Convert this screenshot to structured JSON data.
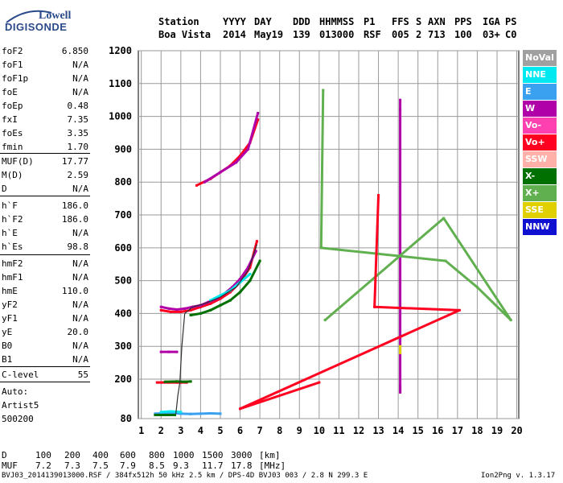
{
  "logo": {
    "company": "Lowell",
    "product": "DIGISONDE"
  },
  "header": {
    "labels": [
      "Station",
      "YYYY",
      "DAY",
      "DDD",
      "HHMMSS",
      "P1",
      "FFS",
      "S",
      "AXN",
      "PPS",
      "IGA",
      "PS"
    ],
    "values": [
      "Boa Vista",
      "2014",
      "May19",
      "139",
      "013000",
      "RSF",
      "005",
      "2",
      "713",
      "100",
      "03+",
      "C0"
    ]
  },
  "params_group1": [
    {
      "name": "foF2",
      "value": "6.850"
    },
    {
      "name": "foF1",
      "value": "N/A"
    },
    {
      "name": "foF1p",
      "value": "N/A"
    },
    {
      "name": "foE",
      "value": "N/A"
    },
    {
      "name": "foEp",
      "value": "0.48"
    },
    {
      "name": "fxI",
      "value": "7.35"
    },
    {
      "name": "foEs",
      "value": "3.35"
    },
    {
      "name": "fmin",
      "value": "1.70"
    }
  ],
  "params_group2": [
    {
      "name": "MUF(D)",
      "value": "17.77"
    },
    {
      "name": "M(D)",
      "value": "2.59"
    },
    {
      "name": "D",
      "value": "N/A"
    }
  ],
  "params_group3": [
    {
      "name": "h`F",
      "value": "186.0"
    },
    {
      "name": "h`F2",
      "value": "186.0"
    },
    {
      "name": "h`E",
      "value": "N/A"
    },
    {
      "name": "h`Es",
      "value": "98.8"
    }
  ],
  "params_group4": [
    {
      "name": "hmF2",
      "value": "N/A"
    },
    {
      "name": "hmF1",
      "value": "N/A"
    },
    {
      "name": "hmE",
      "value": "110.0"
    },
    {
      "name": "yF2",
      "value": "N/A"
    },
    {
      "name": "yF1",
      "value": "N/A"
    },
    {
      "name": "yE",
      "value": "20.0"
    },
    {
      "name": "B0",
      "value": "N/A"
    },
    {
      "name": "B1",
      "value": "N/A"
    }
  ],
  "clevel": {
    "name": "C-level",
    "value": "55"
  },
  "auto": [
    "Auto:",
    "Artist5",
    "500200"
  ],
  "legend": [
    {
      "label": "NoVal",
      "bg": "#a0a0a0",
      "fg": "#ffffff"
    },
    {
      "label": "NNE",
      "bg": "#00e8f0",
      "fg": "#ffffff"
    },
    {
      "label": "E",
      "bg": "#3aa0f0",
      "fg": "#ffffff"
    },
    {
      "label": "W",
      "bg": "#b000a8",
      "fg": "#ffffff"
    },
    {
      "label": "Vo-",
      "bg": "#ff40b0",
      "fg": "#ffffff"
    },
    {
      "label": "Vo+",
      "bg": "#ff0020",
      "fg": "#ffffff"
    },
    {
      "label": "SSW",
      "bg": "#ffb0a8",
      "fg": "#ffffff"
    },
    {
      "label": "X-",
      "bg": "#007000",
      "fg": "#ffffff"
    },
    {
      "label": "X+",
      "bg": "#60b050",
      "fg": "#ffffff"
    },
    {
      "label": "SSE",
      "bg": "#e0d000",
      "fg": "#ffffff"
    },
    {
      "label": "NNW",
      "bg": "#1010d0",
      "fg": "#ffffff"
    }
  ],
  "dmuf": {
    "d_label": "D",
    "d_values": [
      "100",
      "200",
      "400",
      "600",
      "800",
      "1000",
      "1500",
      "3000"
    ],
    "d_unit": "[km]",
    "muf_label": "MUF",
    "muf_values": [
      "7.2",
      "7.3",
      "7.5",
      "7.9",
      "8.5",
      "9.3",
      "11.7",
      "17.8"
    ],
    "muf_unit": "[MHz]"
  },
  "footer": {
    "left": "BVJ03_2014139013000.RSF / 384fx512h 50 kHz 2.5 km / DPS-4D BVJ03 003 / 2.8 N 299.3 E",
    "right": "Ion2Png v. 1.3.17"
  },
  "chart_data": {
    "type": "scatter",
    "xlabel": "",
    "ylabel": "",
    "xlim": [
      0.85,
      20.1
    ],
    "ylim": [
      80,
      1200
    ],
    "x_ticks": [
      1,
      2,
      3,
      4,
      5,
      6,
      7,
      8,
      9,
      10,
      11,
      12,
      13,
      14,
      15,
      16,
      17,
      18,
      19,
      20
    ],
    "y_ticks": [
      80,
      200,
      300,
      400,
      500,
      600,
      700,
      800,
      900,
      1000,
      1100,
      1200
    ],
    "grid": true,
    "traces": [
      {
        "name": "F-trace",
        "color": "#ff0020",
        "x": [
          2.0,
          2.5,
          3.0,
          3.5,
          4.0,
          4.5,
          5.0,
          5.5,
          6.0,
          6.5,
          6.85
        ],
        "y": [
          410,
          405,
          405,
          410,
          420,
          430,
          445,
          465,
          495,
          540,
          620
        ]
      },
      {
        "name": "F-trace",
        "color": "#b000a8",
        "x": [
          2.0,
          2.4,
          2.8,
          3.2,
          3.6,
          4.0,
          4.4,
          4.8,
          5.2,
          5.6,
          6.0,
          6.4,
          6.8
        ],
        "y": [
          420,
          415,
          412,
          415,
          420,
          425,
          435,
          445,
          460,
          480,
          505,
          540,
          590
        ]
      },
      {
        "name": "F-trace",
        "color": "#007000",
        "x": [
          3.5,
          4.0,
          4.5,
          5.0,
          5.5,
          6.0,
          6.5,
          7.0
        ],
        "y": [
          395,
          400,
          410,
          425,
          440,
          465,
          500,
          560
        ]
      },
      {
        "name": "F-trace",
        "color": "#00e8f0",
        "x": [
          4.5,
          5.0,
          5.5,
          6.0,
          6.5
        ],
        "y": [
          440,
          455,
          470,
          495,
          520
        ]
      },
      {
        "name": "2nd-hop",
        "color": "#ff0020",
        "x": [
          3.8,
          4.5,
          5.0,
          5.5,
          6.0,
          6.5,
          6.9
        ],
        "y": [
          790,
          810,
          830,
          850,
          880,
          920,
          990
        ]
      },
      {
        "name": "2nd-hop",
        "color": "#b000a8",
        "x": [
          4.2,
          5.0,
          5.8,
          6.4,
          6.9
        ],
        "y": [
          800,
          830,
          860,
          900,
          1010
        ]
      },
      {
        "name": "Es",
        "color": "#ff0020",
        "x": [
          1.8,
          2.0,
          2.4,
          2.8,
          3.0,
          3.3
        ],
        "y": [
          190,
          190,
          190,
          190,
          190,
          190
        ]
      },
      {
        "name": "Es",
        "color": "#007000",
        "x": [
          2.2,
          2.8,
          3.2,
          3.5
        ],
        "y": [
          192,
          193,
          192,
          193
        ]
      },
      {
        "name": "Es",
        "color": "#b000a8",
        "x": [
          2.0,
          2.4,
          2.8
        ],
        "y": [
          283,
          283,
          283
        ]
      },
      {
        "name": "E",
        "color": "#3aa0f0",
        "x": [
          1.7,
          2.0,
          2.5,
          3.0,
          3.5,
          4.0,
          4.5,
          5.0
        ],
        "y": [
          95,
          96,
          97,
          95,
          94,
          95,
          96,
          95
        ]
      },
      {
        "name": "E",
        "color": "#00e8f0",
        "x": [
          2.0,
          2.5,
          3.0
        ],
        "y": [
          100,
          102,
          100
        ]
      },
      {
        "name": "E",
        "color": "#007000",
        "x": [
          1.7,
          2.2,
          2.7
        ],
        "y": [
          91,
          91,
          91
        ]
      },
      {
        "name": "noise",
        "color": "#b000a8",
        "x": [
          14.1,
          14.1,
          14.1,
          14.1
        ],
        "y": [
          1050,
          1020,
          160,
          180
        ]
      },
      {
        "name": "noise",
        "color": "#e0d000",
        "x": [
          14.1,
          14.1
        ],
        "y": [
          280,
          300
        ]
      },
      {
        "name": "noise",
        "color": "#60b050",
        "x": [
          10.2,
          10.1,
          16.4,
          18.0,
          19.7,
          16.3,
          10.3
        ],
        "y": [
          1080,
          600,
          560,
          480,
          380,
          690,
          380
        ]
      },
      {
        "name": "noise",
        "color": "#ff0020",
        "x": [
          13.0,
          12.8,
          17.1,
          6.0,
          10.0
        ],
        "y": [
          760,
          420,
          410,
          110,
          190
        ]
      }
    ],
    "profile": {
      "name": "profile",
      "color": "#303030",
      "x": [
        2.75,
        2.85,
        2.95,
        3.05,
        3.2,
        3.6,
        4.2,
        5.0,
        5.8,
        6.4,
        6.85
      ],
      "y": [
        95,
        150,
        190,
        300,
        400,
        420,
        430,
        450,
        480,
        530,
        610
      ]
    }
  }
}
